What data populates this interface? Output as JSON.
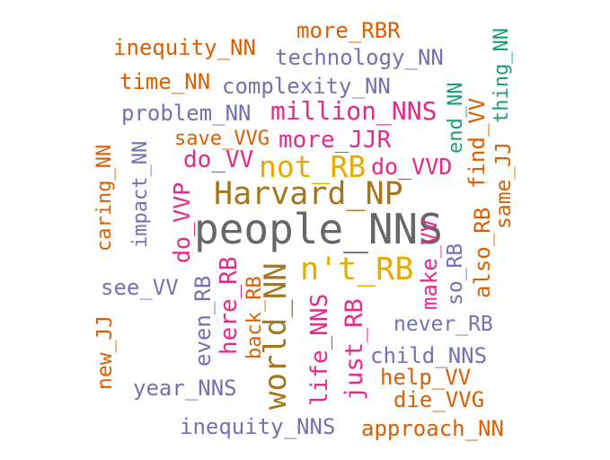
{
  "colors": {
    "orange": "#d95f02",
    "purple": "#7570b3",
    "magenta": "#e7298a",
    "green": "#1b9e77",
    "gold": "#e6ab02",
    "brown": "#a6761d",
    "gray": "#666666"
  },
  "words": [
    {
      "text": "people_NNS",
      "color": "gray"
    },
    {
      "text": "Harvard_NP",
      "color": "brown"
    },
    {
      "text": "world_NN",
      "color": "brown"
    },
    {
      "text": "n't_RB",
      "color": "gold"
    },
    {
      "text": "not_RB",
      "color": "gold"
    },
    {
      "text": "million_NNS",
      "color": "magenta"
    },
    {
      "text": "more_JJR",
      "color": "magenta"
    },
    {
      "text": "do_VVD",
      "color": "magenta"
    },
    {
      "text": "do_VV",
      "color": "magenta"
    },
    {
      "text": "do_VVP",
      "color": "magenta"
    },
    {
      "text": "here_RB",
      "color": "magenta"
    },
    {
      "text": "life_NNS",
      "color": "magenta"
    },
    {
      "text": "just_RB",
      "color": "magenta"
    },
    {
      "text": "make_VV",
      "color": "magenta"
    },
    {
      "text": "technology_NN",
      "color": "purple"
    },
    {
      "text": "complexity_NN",
      "color": "purple"
    },
    {
      "text": "problem_NN",
      "color": "purple"
    },
    {
      "text": "impact_NN",
      "color": "purple"
    },
    {
      "text": "see_VV",
      "color": "purple"
    },
    {
      "text": "year_NNS",
      "color": "purple"
    },
    {
      "text": "inequity_NNS",
      "color": "purple"
    },
    {
      "text": "child_NNS",
      "color": "purple"
    },
    {
      "text": "never_RB",
      "color": "purple"
    },
    {
      "text": "even_RB",
      "color": "purple"
    },
    {
      "text": "so_RB",
      "color": "purple"
    },
    {
      "text": "inequity_NN",
      "color": "orange"
    },
    {
      "text": "more_RBR",
      "color": "orange"
    },
    {
      "text": "time_NN",
      "color": "orange"
    },
    {
      "text": "save_VVG",
      "color": "orange"
    },
    {
      "text": "caring_NN",
      "color": "orange"
    },
    {
      "text": "new_JJ",
      "color": "orange"
    },
    {
      "text": "back_RB",
      "color": "orange"
    },
    {
      "text": "help_VV",
      "color": "orange"
    },
    {
      "text": "die_VVG",
      "color": "orange"
    },
    {
      "text": "approach_NN",
      "color": "orange"
    },
    {
      "text": "find_VV",
      "color": "orange"
    },
    {
      "text": "same_JJ",
      "color": "orange"
    },
    {
      "text": "also_RB",
      "color": "orange"
    },
    {
      "text": "end_NN",
      "color": "green"
    },
    {
      "text": "thing_NN",
      "color": "green"
    }
  ]
}
